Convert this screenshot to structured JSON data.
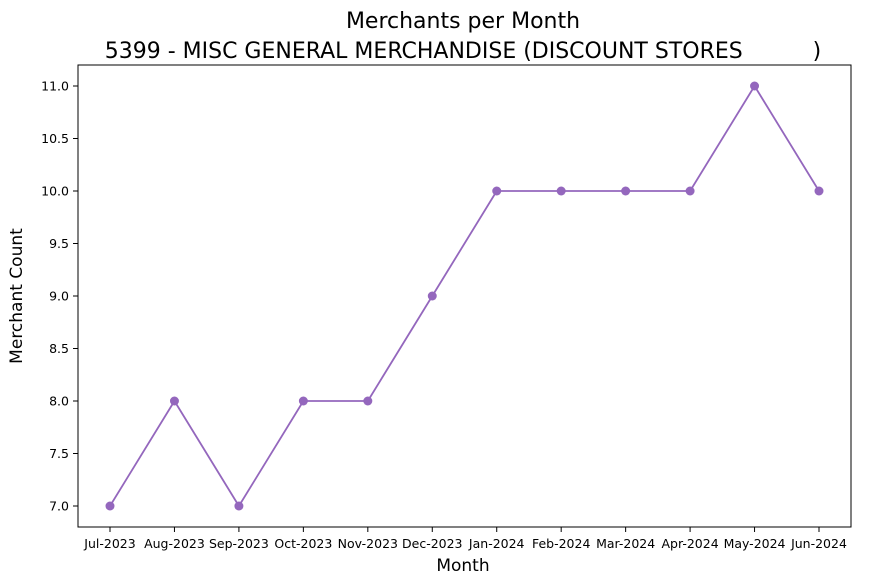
{
  "chart_data": {
    "type": "line",
    "title": "Merchants per Month",
    "subtitle": "5399 - MISC GENERAL MERCHANDISE (DISCOUNT STORES          )",
    "xlabel": "Month",
    "ylabel": "Merchant Count",
    "categories": [
      "Jul-2023",
      "Aug-2023",
      "Sep-2023",
      "Oct-2023",
      "Nov-2023",
      "Dec-2023",
      "Jan-2024",
      "Feb-2024",
      "Mar-2024",
      "Apr-2024",
      "May-2024",
      "Jun-2024"
    ],
    "series": [
      {
        "values": [
          7,
          8,
          7,
          8,
          8,
          9,
          10,
          10,
          10,
          10,
          11,
          10
        ],
        "color": "#9467bd",
        "marker": "circle"
      }
    ],
    "yticks": [
      7.0,
      7.5,
      8.0,
      8.5,
      9.0,
      9.5,
      10.0,
      10.5,
      11.0
    ],
    "ylim": [
      6.8,
      11.2
    ],
    "grid": false,
    "legend": "none"
  }
}
